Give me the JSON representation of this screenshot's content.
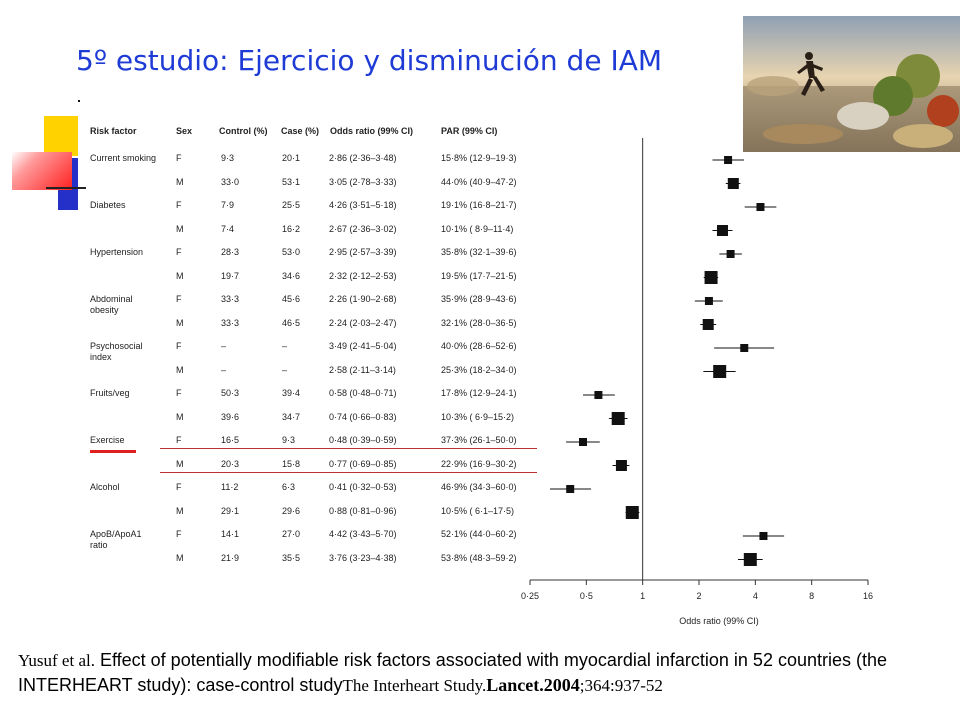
{
  "title": "5º estudio: Ejercicio y disminución de IAM",
  "table": {
    "headers": [
      "Risk factor",
      "Sex",
      "Control (%)",
      "Case (%)",
      "Odds ratio (99% CI)",
      "PAR (99% CI)"
    ],
    "rows": [
      {
        "factor": "Current smoking",
        "sex": "F",
        "control": "9·3",
        "case": "20·1",
        "or": "2·86 (2·36–3·48)",
        "par": "15·8% (12·9–19·3)"
      },
      {
        "factor": "",
        "sex": "M",
        "control": "33·0",
        "case": "53·1",
        "or": "3·05 (2·78–3·33)",
        "par": "44·0% (40·9–47·2)"
      },
      {
        "factor": "Diabetes",
        "sex": "F",
        "control": "7·9",
        "case": "25·5",
        "or": "4·26 (3·51–5·18)",
        "par": "19·1% (16·8–21·7)"
      },
      {
        "factor": "",
        "sex": "M",
        "control": "7·4",
        "case": "16·2",
        "or": "2·67 (2·36–3·02)",
        "par": "10·1% ( 8·9–11·4)"
      },
      {
        "factor": "Hypertension",
        "sex": "F",
        "control": "28·3",
        "case": "53·0",
        "or": "2·95 (2·57–3·39)",
        "par": "35·8% (32·1–39·6)"
      },
      {
        "factor": "",
        "sex": "M",
        "control": "19·7",
        "case": "34·6",
        "or": "2·32 (2·12–2·53)",
        "par": "19·5% (17·7–21·5)"
      },
      {
        "factor": "Abdominal\nobesity",
        "sex": "F",
        "control": "33·3",
        "case": "45·6",
        "or": "2·26 (1·90–2·68)",
        "par": "35·9% (28·9–43·6)"
      },
      {
        "factor": "",
        "sex": "M",
        "control": "33·3",
        "case": "46·5",
        "or": "2·24 (2·03–2·47)",
        "par": "32·1% (28·0–36·5)"
      },
      {
        "factor": "Psychosocial\nindex",
        "sex": "F",
        "control": "–",
        "case": "–",
        "or": "3·49 (2·41–5·04)",
        "par": "40·0% (28·6–52·6)"
      },
      {
        "factor": "",
        "sex": "M",
        "control": "–",
        "case": "–",
        "or": "2·58 (2·11–3·14)",
        "par": "25·3% (18·2–34·0)"
      },
      {
        "factor": "Fruits/veg",
        "sex": "F",
        "control": "50·3",
        "case": "39·4",
        "or": "0·58 (0·48–0·71)",
        "par": "17·8% (12·9–24·1)"
      },
      {
        "factor": "",
        "sex": "M",
        "control": "39·6",
        "case": "34·7",
        "or": "0·74 (0·66–0·83)",
        "par": "10·3% ( 6·9–15·2)"
      },
      {
        "factor": "Exercise",
        "sex": "F",
        "control": "16·5",
        "case": "9·3",
        "or": "0·48 (0·39–0·59)",
        "par": "37·3% (26·1–50·0)"
      },
      {
        "factor": "",
        "sex": "M",
        "control": "20·3",
        "case": "15·8",
        "or": "0·77 (0·69–0·85)",
        "par": "22·9% (16·9–30·2)"
      },
      {
        "factor": "Alcohol",
        "sex": "F",
        "control": "11·2",
        "case": "6·3",
        "or": "0·41 (0·32–0·53)",
        "par": "46·9% (34·3–60·0)"
      },
      {
        "factor": "",
        "sex": "M",
        "control": "29·1",
        "case": "29·6",
        "or": "0·88 (0·81–0·96)",
        "par": "10·5% ( 6·1–17·5)"
      },
      {
        "factor": "ApoB/ApoA1\nratio",
        "sex": "F",
        "control": "14·1",
        "case": "27·0",
        "or": "4·42 (3·43–5·70)",
        "par": "52·1% (44·0–60·2)"
      },
      {
        "factor": "",
        "sex": "M",
        "control": "21·9",
        "case": "35·5",
        "or": "3·76 (3·23–4·38)",
        "par": "53·8% (48·3–59·2)"
      }
    ],
    "highlight_factor": "Exercise",
    "highlight_color": "#e0201e"
  },
  "chart_data": {
    "type": "scatter",
    "xlabel": "Odds ratio (99% CI)",
    "xscale": "log",
    "xlim": [
      0.25,
      16
    ],
    "xticks": [
      "0·25",
      "0·5",
      "1",
      "2",
      "4",
      "8",
      "16"
    ],
    "xtick_values": [
      0.25,
      0.5,
      1,
      2,
      4,
      8,
      16
    ],
    "reference_line": 1,
    "points": [
      {
        "or": 2.86,
        "lo": 2.36,
        "hi": 3.48,
        "weight": "s"
      },
      {
        "or": 3.05,
        "lo": 2.78,
        "hi": 3.33,
        "weight": "m"
      },
      {
        "or": 4.26,
        "lo": 3.51,
        "hi": 5.18,
        "weight": "s"
      },
      {
        "or": 2.67,
        "lo": 2.36,
        "hi": 3.02,
        "weight": "m"
      },
      {
        "or": 2.95,
        "lo": 2.57,
        "hi": 3.39,
        "weight": "s"
      },
      {
        "or": 2.32,
        "lo": 2.12,
        "hi": 2.53,
        "weight": "l"
      },
      {
        "or": 2.26,
        "lo": 1.9,
        "hi": 2.68,
        "weight": "s"
      },
      {
        "or": 2.24,
        "lo": 2.03,
        "hi": 2.47,
        "weight": "m"
      },
      {
        "or": 3.49,
        "lo": 2.41,
        "hi": 5.04,
        "weight": "s"
      },
      {
        "or": 2.58,
        "lo": 2.11,
        "hi": 3.14,
        "weight": "l"
      },
      {
        "or": 0.58,
        "lo": 0.48,
        "hi": 0.71,
        "weight": "s"
      },
      {
        "or": 0.74,
        "lo": 0.66,
        "hi": 0.83,
        "weight": "l"
      },
      {
        "or": 0.48,
        "lo": 0.39,
        "hi": 0.59,
        "weight": "s"
      },
      {
        "or": 0.77,
        "lo": 0.69,
        "hi": 0.85,
        "weight": "m"
      },
      {
        "or": 0.41,
        "lo": 0.32,
        "hi": 0.53,
        "weight": "s"
      },
      {
        "or": 0.88,
        "lo": 0.81,
        "hi": 0.96,
        "weight": "l"
      },
      {
        "or": 4.42,
        "lo": 3.43,
        "hi": 5.7,
        "weight": "s"
      },
      {
        "or": 3.76,
        "lo": 3.23,
        "hi": 4.38,
        "weight": "l"
      }
    ]
  },
  "citation": {
    "authors": "Yusuf et al",
    "authors_dot": ".",
    "text": " Effect of potentially modifiable risk factors associated with myocardial infarction in 52 countries (the INTERHEART study): case-control study",
    "source": "The Interheart Study.",
    "journal": "Lancet.2004",
    "pages": ";364:937-52"
  }
}
